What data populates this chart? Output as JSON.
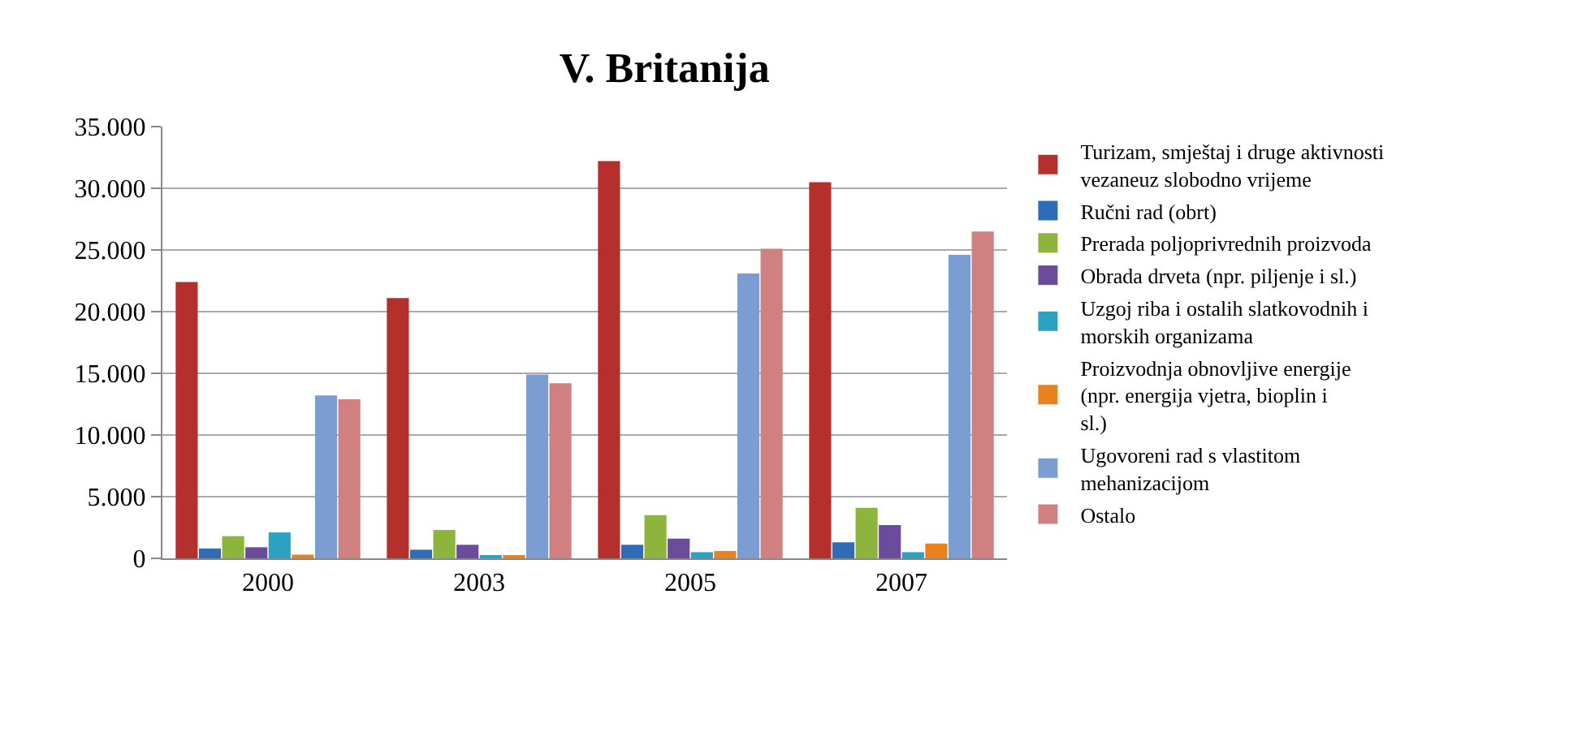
{
  "chart_data": {
    "type": "bar",
    "title": "V. Britanija",
    "categories": [
      "2000",
      "2003",
      "2005",
      "2007"
    ],
    "series": [
      {
        "name": "Turizam, smještaj i druge aktivnosti vezaneuz slobodno vrijeme",
        "color": "#b5302c",
        "values": [
          22400,
          21100,
          32200,
          30500
        ]
      },
      {
        "name": "Ručni rad (obrt)",
        "color": "#2f6cb5",
        "values": [
          800,
          700,
          1100,
          1300
        ]
      },
      {
        "name": "Prerada poljoprivrednih proizvoda",
        "color": "#8db43c",
        "values": [
          1800,
          2300,
          3500,
          4100
        ]
      },
      {
        "name": "Obrada drveta (npr. piljenje i sl.)",
        "color": "#6b4b9c",
        "values": [
          900,
          1100,
          1600,
          2700
        ]
      },
      {
        "name": "Uzgoj riba i ostalih slatkovodnih i morskih organizama",
        "color": "#2ba2c1",
        "values": [
          2100,
          200,
          500,
          500
        ]
      },
      {
        "name": "Proizvodnja obnovljive energije (npr. energija vjetra, bioplin i sl.)",
        "color": "#e8821e",
        "values": [
          300,
          200,
          600,
          1200
        ]
      },
      {
        "name": "Ugovoreni rad s vlastitom mehanizacijom",
        "color": "#7b9dd2",
        "values": [
          13200,
          14900,
          23100,
          24600
        ]
      },
      {
        "name": "Ostalo",
        "color": "#d08080",
        "values": [
          12900,
          14200,
          25100,
          26500
        ]
      }
    ],
    "ylim": [
      0,
      35000
    ],
    "yticks": [
      {
        "value": 0,
        "label": "0"
      },
      {
        "value": 5000,
        "label": "5.000"
      },
      {
        "value": 10000,
        "label": "10.000"
      },
      {
        "value": 15000,
        "label": "15.000"
      },
      {
        "value": 20000,
        "label": "20.000"
      },
      {
        "value": 25000,
        "label": "25.000"
      },
      {
        "value": 30000,
        "label": "30.000"
      },
      {
        "value": 35000,
        "label": "35.000"
      }
    ],
    "grid": "y",
    "legend": "right"
  }
}
